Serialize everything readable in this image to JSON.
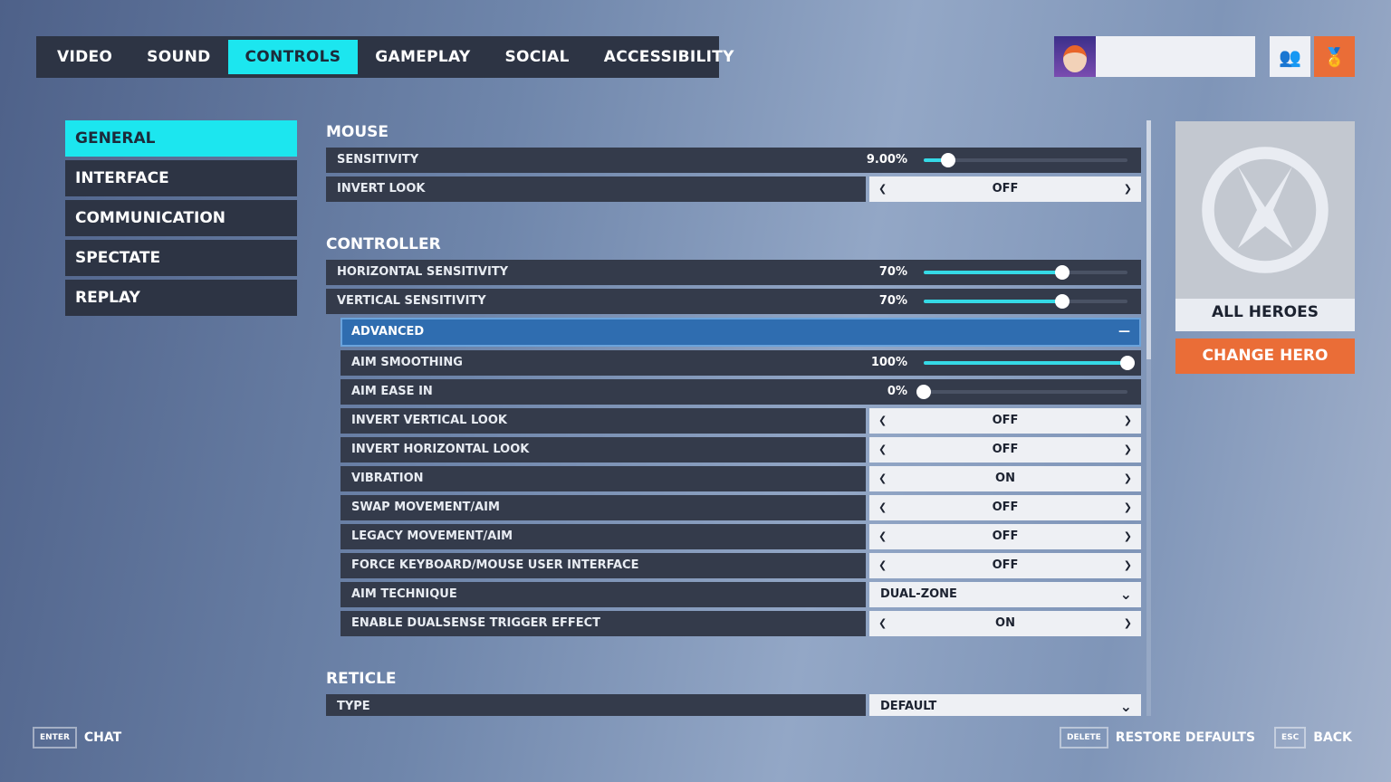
{
  "tabs": [
    {
      "label": "VIDEO"
    },
    {
      "label": "SOUND"
    },
    {
      "label": "CONTROLS",
      "active": true
    },
    {
      "label": "GAMEPLAY"
    },
    {
      "label": "SOCIAL"
    },
    {
      "label": "ACCESSIBILITY"
    }
  ],
  "header": {
    "player_name": "",
    "social_icon": "group-icon",
    "rewards_icon": "medal-icon"
  },
  "nav": [
    {
      "label": "GENERAL",
      "active": true
    },
    {
      "label": "INTERFACE"
    },
    {
      "label": "COMMUNICATION"
    },
    {
      "label": "SPECTATE"
    },
    {
      "label": "REPLAY"
    }
  ],
  "sections": [
    {
      "title": "MOUSE",
      "rows": [
        {
          "type": "slider",
          "label": "SENSITIVITY",
          "value": "9.00%",
          "fill": 0.12
        },
        {
          "type": "toggle",
          "label": "INVERT LOOK",
          "value": "OFF"
        }
      ]
    },
    {
      "title": "CONTROLLER",
      "rows": [
        {
          "type": "slider",
          "label": "HORIZONTAL SENSITIVITY",
          "value": "70%",
          "fill": 0.68
        },
        {
          "type": "slider",
          "label": "VERTICAL SENSITIVITY",
          "value": "70%",
          "fill": 0.68
        },
        {
          "type": "advanced",
          "label": "ADVANCED",
          "symbol": "—"
        },
        {
          "type": "slider",
          "label": "AIM SMOOTHING",
          "value": "100%",
          "fill": 1,
          "indent": true
        },
        {
          "type": "slider",
          "label": "AIM EASE IN",
          "value": "0%",
          "fill": 0,
          "indent": true
        },
        {
          "type": "toggle",
          "label": "INVERT VERTICAL LOOK",
          "value": "OFF",
          "indent": true
        },
        {
          "type": "toggle",
          "label": "INVERT HORIZONTAL LOOK",
          "value": "OFF",
          "indent": true
        },
        {
          "type": "toggle",
          "label": "VIBRATION",
          "value": "ON",
          "indent": true
        },
        {
          "type": "toggle",
          "label": "SWAP MOVEMENT/AIM",
          "value": "OFF",
          "indent": true
        },
        {
          "type": "toggle",
          "label": "LEGACY MOVEMENT/AIM",
          "value": "OFF",
          "indent": true
        },
        {
          "type": "toggle",
          "label": "FORCE KEYBOARD/MOUSE USER INTERFACE",
          "value": "OFF",
          "indent": true
        },
        {
          "type": "dropdown",
          "label": "AIM TECHNIQUE",
          "value": "DUAL-ZONE",
          "indent": true
        },
        {
          "type": "toggle",
          "label": "ENABLE DUALSENSE TRIGGER EFFECT",
          "value": "ON",
          "indent": true
        }
      ]
    },
    {
      "title": "RETICLE",
      "rows": [
        {
          "type": "dropdown",
          "label": "TYPE",
          "value": "DEFAULT"
        }
      ]
    }
  ],
  "hero": {
    "name": "ALL HEROES",
    "change_label": "CHANGE HERO"
  },
  "footer": {
    "chat_key": "ENTER",
    "chat_label": "CHAT",
    "restore_key": "DELETE",
    "restore_label": "RESTORE DEFAULTS",
    "back_key": "ESC",
    "back_label": "BACK"
  },
  "colors": {
    "accent": "#1ce6ef",
    "orange": "#ea6d37",
    "panel": "#343b4b",
    "advanced": "#2f6db0"
  }
}
